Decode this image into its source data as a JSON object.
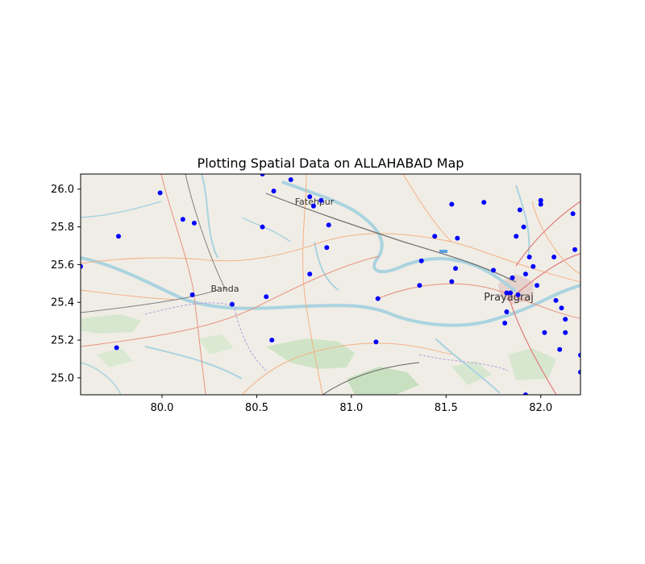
{
  "chart_data": {
    "type": "scatter",
    "title": "Plotting Spatial Data on ALLAHABAD Map",
    "xlabel": "",
    "ylabel": "",
    "xlim": [
      79.57,
      82.21
    ],
    "ylim": [
      24.91,
      26.08
    ],
    "x_ticks": [
      "80.0",
      "80.5",
      "81.0",
      "81.5",
      "82.0"
    ],
    "x_tick_values": [
      80.0,
      80.5,
      81.0,
      81.5,
      82.0
    ],
    "y_ticks": [
      "25.0",
      "25.2",
      "25.4",
      "25.6",
      "25.8",
      "26.0"
    ],
    "y_tick_values": [
      25.0,
      25.2,
      25.4,
      25.6,
      25.8,
      26.0
    ],
    "grid": false,
    "marker_color": "#0000ff",
    "basemap": "OpenStreetMap",
    "places": [
      {
        "name": "Fatehpur",
        "lon": 80.81,
        "lat": 25.93
      },
      {
        "name": "Banda",
        "lon": 80.34,
        "lat": 25.45
      },
      {
        "name": "Prayagraj",
        "lon": 81.85,
        "lat": 25.42
      }
    ],
    "points": [
      {
        "x": 79.57,
        "y": 25.59
      },
      {
        "x": 79.99,
        "y": 25.98
      },
      {
        "x": 80.11,
        "y": 25.84
      },
      {
        "x": 80.17,
        "y": 25.82
      },
      {
        "x": 79.77,
        "y": 25.75
      },
      {
        "x": 79.76,
        "y": 25.16
      },
      {
        "x": 80.16,
        "y": 25.44
      },
      {
        "x": 80.37,
        "y": 25.39
      },
      {
        "x": 80.58,
        "y": 25.2
      },
      {
        "x": 80.55,
        "y": 25.43
      },
      {
        "x": 80.53,
        "y": 26.08
      },
      {
        "x": 80.68,
        "y": 26.05
      },
      {
        "x": 80.59,
        "y": 25.99
      },
      {
        "x": 80.53,
        "y": 25.8
      },
      {
        "x": 80.78,
        "y": 25.96
      },
      {
        "x": 80.8,
        "y": 25.91
      },
      {
        "x": 80.84,
        "y": 25.94
      },
      {
        "x": 80.88,
        "y": 25.81
      },
      {
        "x": 80.87,
        "y": 25.69
      },
      {
        "x": 80.78,
        "y": 25.55
      },
      {
        "x": 81.14,
        "y": 25.42
      },
      {
        "x": 81.13,
        "y": 25.19
      },
      {
        "x": 81.37,
        "y": 25.62
      },
      {
        "x": 81.36,
        "y": 25.49
      },
      {
        "x": 81.44,
        "y": 25.75
      },
      {
        "x": 81.53,
        "y": 25.92
      },
      {
        "x": 81.56,
        "y": 25.74
      },
      {
        "x": 81.55,
        "y": 25.58
      },
      {
        "x": 81.53,
        "y": 25.51
      },
      {
        "x": 81.7,
        "y": 25.93
      },
      {
        "x": 81.75,
        "y": 25.57
      },
      {
        "x": 81.81,
        "y": 25.29
      },
      {
        "x": 81.82,
        "y": 25.35
      },
      {
        "x": 81.82,
        "y": 25.45
      },
      {
        "x": 81.84,
        "y": 25.45
      },
      {
        "x": 81.85,
        "y": 25.53
      },
      {
        "x": 81.87,
        "y": 25.75
      },
      {
        "x": 81.89,
        "y": 25.89
      },
      {
        "x": 81.91,
        "y": 25.8
      },
      {
        "x": 81.92,
        "y": 25.55
      },
      {
        "x": 81.94,
        "y": 25.64
      },
      {
        "x": 81.96,
        "y": 25.59
      },
      {
        "x": 81.98,
        "y": 25.49
      },
      {
        "x": 82.0,
        "y": 25.94
      },
      {
        "x": 82.0,
        "y": 25.92
      },
      {
        "x": 82.07,
        "y": 25.64
      },
      {
        "x": 82.08,
        "y": 25.41
      },
      {
        "x": 82.11,
        "y": 25.37
      },
      {
        "x": 82.13,
        "y": 25.31
      },
      {
        "x": 82.13,
        "y": 25.24
      },
      {
        "x": 82.02,
        "y": 25.24
      },
      {
        "x": 82.1,
        "y": 25.15
      },
      {
        "x": 82.17,
        "y": 25.87
      },
      {
        "x": 82.18,
        "y": 25.68
      },
      {
        "x": 82.21,
        "y": 25.12
      },
      {
        "x": 82.21,
        "y": 25.03
      },
      {
        "x": 81.92,
        "y": 24.91
      },
      {
        "x": 81.88,
        "y": 25.44
      }
    ]
  }
}
